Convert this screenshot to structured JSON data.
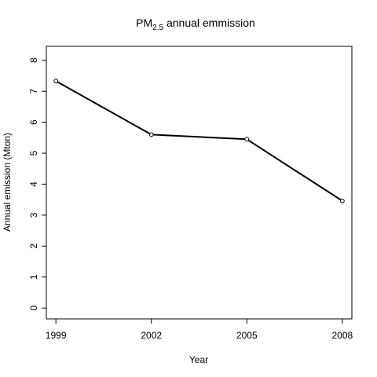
{
  "chart_data": {
    "type": "line",
    "title": {
      "prefix": "PM",
      "subscript": "2.5",
      "suffix": " annual emmission"
    },
    "xlabel": "Year",
    "ylabel": "Annual emission (Mton)",
    "x": [
      1999,
      2002,
      2005,
      2008
    ],
    "x_tick_labels": [
      "1999",
      "2002",
      "2005",
      "2008"
    ],
    "series": [
      {
        "values": [
          7.33,
          5.6,
          5.45,
          3.46
        ]
      }
    ],
    "y_ticks": [
      0,
      1,
      2,
      3,
      4,
      5,
      6,
      7,
      8
    ],
    "y_tick_labels": [
      "0",
      "1",
      "2",
      "3",
      "4",
      "5",
      "6",
      "7",
      "8"
    ],
    "xlim": [
      1998.7,
      2008.3
    ],
    "ylim": [
      -0.35,
      8.45
    ],
    "grid": false,
    "marker": "open-circle",
    "line_color": "#000000"
  }
}
